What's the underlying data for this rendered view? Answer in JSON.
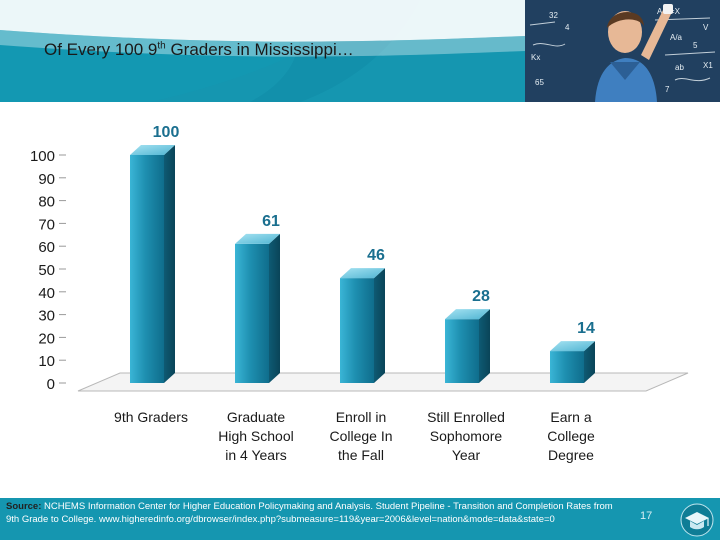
{
  "slide": {
    "title_main": "Of Every 100 9",
    "title_sup": "th",
    "title_rest": " Graders in Mississippi…",
    "source_label": "Source:",
    "source_text": " NCHEMS Information Center for Higher Education Policymaking and Analysis. Student Pipeline - Transition and Completion Rates from 9th Grade to College. www.higheredinfo.org/dbrowser/index.php?submeasure=119&year=2006&level=nation&mode=data&state=0",
    "page_number": "17",
    "photo_board_marks": [
      "32",
      "A/B=X",
      "V",
      "A/a",
      "Kx",
      "5",
      "ab",
      "4",
      "X1",
      "65",
      "7"
    ],
    "logo_icon": "graduation-cap-icon"
  },
  "colors": {
    "header": "#1596b0",
    "bar_front": "#1e8fb0",
    "bar_side": "#0f5c75",
    "bar_top": "#7fd0e6",
    "data_label": "#1a6f8f"
  },
  "chart_data": {
    "type": "bar",
    "style": "3d",
    "categories": [
      [
        "9th Graders"
      ],
      [
        "Graduate",
        "High School",
        "in 4 Years"
      ],
      [
        "Enroll in",
        "College In",
        "the Fall"
      ],
      [
        "Still Enrolled",
        "Sophomore",
        "Year"
      ],
      [
        "Earn a",
        "College",
        "Degree"
      ]
    ],
    "values": [
      100,
      61,
      46,
      28,
      14
    ],
    "data_labels": [
      "100",
      "61",
      "46",
      "28",
      "14"
    ],
    "yticks": [
      "0",
      "10",
      "20",
      "30",
      "40",
      "50",
      "60",
      "70",
      "80",
      "90",
      "100"
    ],
    "ylim": [
      0,
      100
    ],
    "grid": false,
    "legend": "none",
    "title": "",
    "xlabel": "",
    "ylabel": ""
  }
}
